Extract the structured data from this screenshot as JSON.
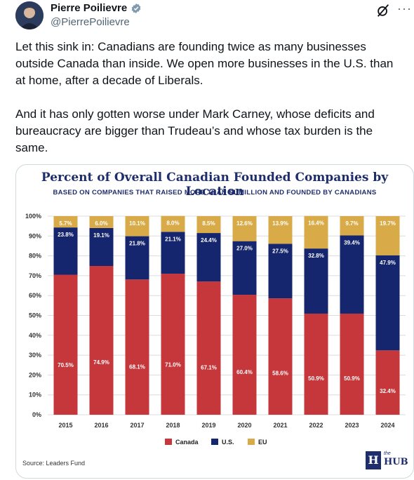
{
  "author": {
    "name": "Pierre Poilievre",
    "handle": "@PierrePoilievre"
  },
  "icons": {
    "verified": "verified-badge-icon",
    "grok": "grok-icon",
    "more": "more-icon"
  },
  "more_glyph": "···",
  "tweet": {
    "paragraphs": [
      "Let this sink in: Canadians are founding twice as many businesses outside Canada than inside. We open more businesses in the U.S. than at home, after a decade of Liberals.",
      "And it has only gotten worse under Mark Carney, whose deficits and bureaucracy are bigger than Trudeau’s and whose tax burden is the same."
    ]
  },
  "image": {
    "source": "Source: Leaders Fund",
    "logo_letter": "H",
    "logo_the": "the",
    "logo_hub": "HUB"
  },
  "colors": {
    "canada": "#c5373b",
    "us": "#15256e",
    "eu": "#d9ab48",
    "title": "#1e2d6b",
    "grid": "#dcdcdc"
  },
  "chart_data": {
    "type": "bar",
    "stacked": true,
    "title": "Percent of Overall Canadian Founded Companies by Location",
    "subtitle": "BASED ON COMPANIES THAT RAISED MORE THAN $1 MILLION AND FOUNDED BY CANADIANS",
    "categories": [
      "2015",
      "2016",
      "2017",
      "2018",
      "2019",
      "2020",
      "2021",
      "2022",
      "2023",
      "2024"
    ],
    "series": [
      {
        "name": "Canada",
        "values": [
          70.5,
          74.9,
          68.1,
          71.0,
          67.1,
          60.4,
          58.6,
          50.9,
          50.9,
          32.4
        ]
      },
      {
        "name": "U.S.",
        "values": [
          23.8,
          19.1,
          21.8,
          21.1,
          24.4,
          27.0,
          27.5,
          32.8,
          39.4,
          47.9
        ]
      },
      {
        "name": "EU",
        "values": [
          5.7,
          6.0,
          10.1,
          8.0,
          8.5,
          12.6,
          13.9,
          16.4,
          9.7,
          19.7
        ]
      }
    ],
    "yticks": [
      "0%",
      "10%",
      "20%",
      "30%",
      "40%",
      "50%",
      "60%",
      "70%",
      "80%",
      "90%",
      "100%"
    ],
    "ylim": [
      0,
      100
    ],
    "grid": true,
    "legend": "bottom-center"
  }
}
